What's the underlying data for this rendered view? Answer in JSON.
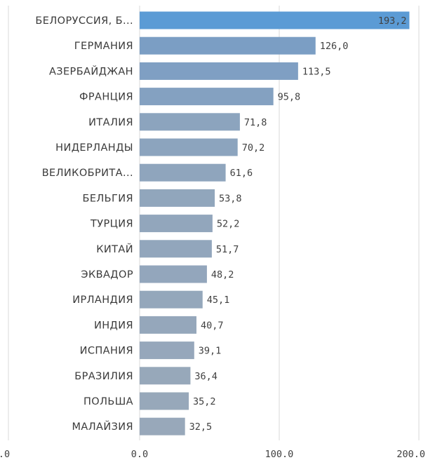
{
  "chart_data": {
    "type": "bar",
    "orientation": "horizontal",
    "categories": [
      "БЕЛОРУССИЯ, Б...",
      "ГЕРМАНИЯ",
      "АЗЕРБАЙДЖАН",
      "ФРАНЦИЯ",
      "ИТАЛИЯ",
      "НИДЕРЛАНДЫ",
      "ВЕЛИКОБРИТА...",
      "БЕЛЬГИЯ",
      "ТУРЦИЯ",
      "КИТАЙ",
      "ЭКВАДОР",
      "ИРЛАНДИЯ",
      "ИНДИЯ",
      "ИСПАНИЯ",
      "БРАЗИЛИЯ",
      "ПОЛЬША",
      "МАЛАЙЗИЯ"
    ],
    "values": [
      193.2,
      126.0,
      113.5,
      95.8,
      71.8,
      70.2,
      61.6,
      53.8,
      52.2,
      51.7,
      48.2,
      45.1,
      40.7,
      39.1,
      36.4,
      35.2,
      32.5
    ],
    "value_labels": [
      "193,2",
      "126,0",
      "113,5",
      "95,8",
      "71,8",
      "70,2",
      "61,6",
      "53,8",
      "52,2",
      "51,7",
      "48,2",
      "45,1",
      "40,7",
      "39,1",
      "36,4",
      "35,2",
      "32,5"
    ],
    "xlim": [
      0,
      200
    ],
    "x_ticks": [
      0,
      100,
      200
    ],
    "x_tick_labels": [
      "0.0",
      "100.0",
      "200.0"
    ],
    "left_tick_label": ".0",
    "grid": true,
    "colors": {
      "max": "#5b9bd5",
      "high": "#7b9ec4",
      "low": "#98a8ba"
    }
  }
}
